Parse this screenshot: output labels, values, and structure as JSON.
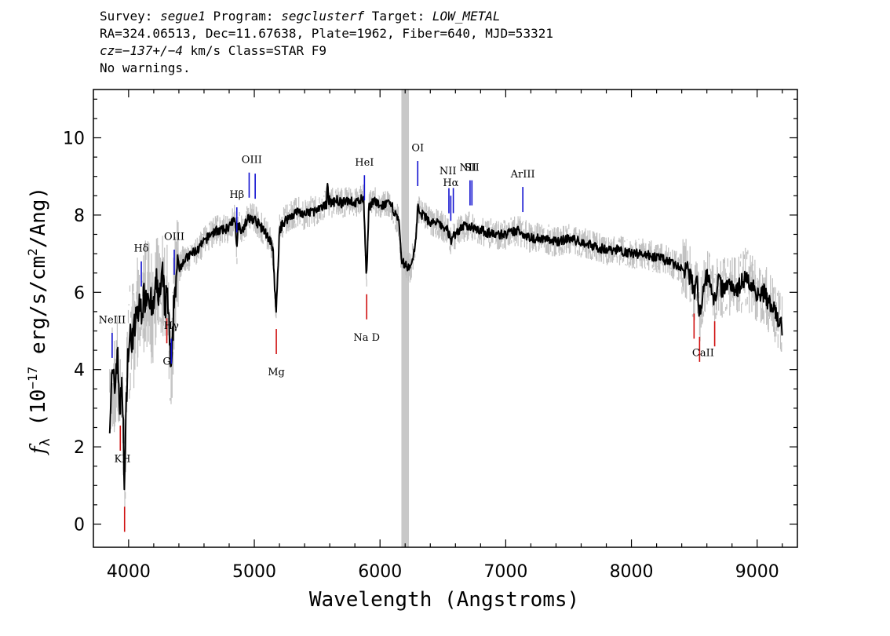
{
  "header": {
    "line1": {
      "survey_label": "Survey: ",
      "survey": "segue1",
      "program_label": " Program: ",
      "program": "segclusterf",
      "target_label": " Target: ",
      "target": "LOW_METAL"
    },
    "line2": "RA=324.06513, Dec=11.67638, Plate=1962, Fiber=640, MJD=53321",
    "line3": {
      "cz_label": "cz=",
      "cz_value": "−137+/−4",
      "cz_unit": " km/s Class=STAR F9"
    },
    "line4": "No warnings."
  },
  "chart_data": {
    "type": "line",
    "title": "",
    "xlabel": "Wavelength (Angstroms)",
    "ylabel_parts": {
      "f": "f",
      "sub": "λ",
      "pre": " (10",
      "exp": "−17",
      "post": " erg/s/cm",
      "exp2": "2",
      "tail": "/Ang)"
    },
    "xlim": [
      3720,
      9320
    ],
    "ylim": [
      -0.6,
      11.25
    ],
    "x_ticks": [
      4000,
      5000,
      6000,
      7000,
      8000,
      9000
    ],
    "y_ticks": [
      0,
      2,
      4,
      6,
      8,
      10
    ],
    "grey_band": [
      6170,
      6230
    ],
    "series": [
      {
        "role": "spectrum",
        "color": "#000000",
        "x": [
          3850,
          3870,
          3890,
          3910,
          3930,
          3950,
          3968,
          3990,
          4010,
          4040,
          4070,
          4101,
          4130,
          4160,
          4190,
          4220,
          4250,
          4270,
          4290,
          4310,
          4330,
          4340,
          4360,
          4380,
          4400,
          4430,
          4470,
          4500,
          4550,
          4600,
          4650,
          4700,
          4750,
          4800,
          4850,
          4861,
          4870,
          4900,
          4950,
          5000,
          5050,
          5100,
          5130,
          5150,
          5167,
          5172,
          5184,
          5200,
          5230,
          5260,
          5300,
          5350,
          5400,
          5450,
          5500,
          5550,
          5575,
          5580,
          5590,
          5620,
          5650,
          5700,
          5750,
          5800,
          5850,
          5870,
          5890,
          5896,
          5910,
          5950,
          6000,
          6050,
          6100,
          6150,
          6170,
          6240,
          6280,
          6300,
          6320,
          6350,
          6400,
          6450,
          6500,
          6540,
          6563,
          6575,
          6600,
          6650,
          6700,
          6750,
          6800,
          6900,
          7000,
          7100,
          7200,
          7300,
          7400,
          7500,
          7600,
          7700,
          7800,
          7900,
          8000,
          8100,
          8200,
          8300,
          8400,
          8450,
          8498,
          8520,
          8542,
          8570,
          8600,
          8630,
          8662,
          8690,
          8720,
          8760,
          8800,
          8850,
          8900,
          8950,
          9000,
          9050,
          9100,
          9150,
          9200
        ],
        "y": [
          2.8,
          3.8,
          3.5,
          4.5,
          3.0,
          3.5,
          1.0,
          4.2,
          4.8,
          4.9,
          5.5,
          5.6,
          5.9,
          6.1,
          5.4,
          6.2,
          5.9,
          6.4,
          5.6,
          6.0,
          4.4,
          3.6,
          5.8,
          6.5,
          6.6,
          6.8,
          6.9,
          7.0,
          7.1,
          7.3,
          7.5,
          7.6,
          7.6,
          7.7,
          7.9,
          7.0,
          7.8,
          7.6,
          7.9,
          7.9,
          7.7,
          7.5,
          7.3,
          7.0,
          5.8,
          5.4,
          6.2,
          7.6,
          7.8,
          7.9,
          8.0,
          8.1,
          8.0,
          8.1,
          8.1,
          8.2,
          8.3,
          9.0,
          8.4,
          8.3,
          8.4,
          8.3,
          8.4,
          8.3,
          8.4,
          8.4,
          6.5,
          6.5,
          8.2,
          8.4,
          8.2,
          8.3,
          8.2,
          7.8,
          6.8,
          6.6,
          7.2,
          8.2,
          8.0,
          8.0,
          7.8,
          7.8,
          7.7,
          7.6,
          7.3,
          7.5,
          7.5,
          7.7,
          7.7,
          7.7,
          7.6,
          7.5,
          7.5,
          7.6,
          7.4,
          7.4,
          7.3,
          7.4,
          7.3,
          7.2,
          7.1,
          7.1,
          7.0,
          7.0,
          6.9,
          6.8,
          6.6,
          6.6,
          6.0,
          6.3,
          5.4,
          6.1,
          6.4,
          6.2,
          5.8,
          6.3,
          6.1,
          6.2,
          6.2,
          6.1,
          6.4,
          6.2,
          6.0,
          6.0,
          5.7,
          5.4,
          5.1
        ]
      }
    ],
    "lines_blue": [
      {
        "label": "NeIII",
        "x": 3869
      },
      {
        "label": "Hδ",
        "x": 4101
      },
      {
        "label": "Hγ",
        "x": 4340
      },
      {
        "label": "OIII",
        "x": 4363
      },
      {
        "label": "Hβ",
        "x": 4861
      },
      {
        "label": "OIII",
        "x": 4959
      },
      {
        "label": "OIII",
        "x": 5007
      },
      {
        "label": "HeI",
        "x": 5876
      },
      {
        "label": "OI",
        "x": 6300
      },
      {
        "label": "NII",
        "x": 6548
      },
      {
        "label": "Hα",
        "x": 6563
      },
      {
        "label": "NII",
        "x": 6583
      },
      {
        "label": "SII",
        "x": 6716
      },
      {
        "label": "SII",
        "x": 6731
      },
      {
        "label": "ArIII",
        "x": 7136
      }
    ],
    "lines_red": [
      {
        "label": "K",
        "x": 3934
      },
      {
        "label": "H",
        "x": 3968
      },
      {
        "label": "G",
        "x": 4304
      },
      {
        "label": "Mg",
        "x": 5175
      },
      {
        "label": "Na D",
        "x": 5894
      },
      {
        "label": "CaII",
        "x": 8498
      },
      {
        "label": "CaII",
        "x": 8542
      },
      {
        "label": "CaII",
        "x": 8662
      }
    ],
    "line_labels": [
      {
        "text": "NeIII",
        "x": 3869
      },
      {
        "text": "Hδ",
        "x": 4101
      },
      {
        "text": "Hγ",
        "x": 4340
      },
      {
        "text": "OIII",
        "x": 4363
      },
      {
        "text": "Hβ",
        "x": 4861
      },
      {
        "text": "OIII",
        "x": 4980
      },
      {
        "text": "HeI",
        "x": 5876
      },
      {
        "text": "OI",
        "x": 6300
      },
      {
        "text": "NII",
        "x": 6540
      },
      {
        "text": "Hα",
        "x": 6563
      },
      {
        "text": "SII",
        "x": 6730
      },
      {
        "text": "NII",
        "x": 6700
      },
      {
        "text": "ArIII",
        "x": 7136
      },
      {
        "text": "KH",
        "x": 3951
      },
      {
        "text": "G",
        "x": 4304
      },
      {
        "text": "Mg",
        "x": 5175
      },
      {
        "text": "Na D",
        "x": 5894
      },
      {
        "text": "CaII",
        "x": 8570
      }
    ]
  }
}
